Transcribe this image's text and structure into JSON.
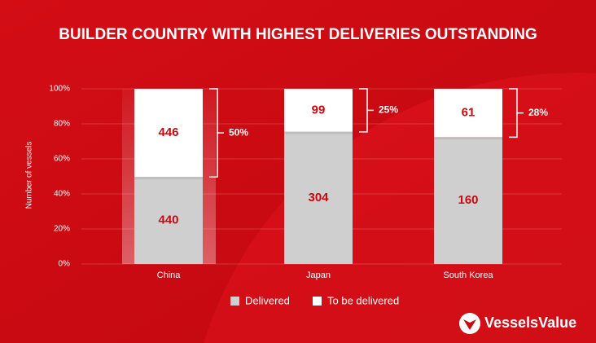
{
  "chart_data": {
    "type": "bar",
    "stacking": "percent",
    "title": "BUILDER COUNTRY WITH HIGHEST DELIVERIES  OUTSTANDING",
    "y_label": "Number of vessels",
    "categories": [
      "China",
      "Japan",
      "South Korea"
    ],
    "series": [
      {
        "name": "Delivered",
        "color": "#cfcfcf",
        "values": [
          440,
          304,
          160
        ]
      },
      {
        "name": "To be delivered",
        "color": "#ffffff",
        "values": [
          446,
          99,
          61
        ]
      }
    ],
    "annotations": [
      "50%",
      "25%",
      "28%"
    ],
    "ylim": [
      0,
      100
    ],
    "yticks": [
      {
        "value": 0,
        "label": "0%"
      },
      {
        "value": 20,
        "label": "20%"
      },
      {
        "value": 40,
        "label": "40%"
      },
      {
        "value": 60,
        "label": "60%"
      },
      {
        "value": 80,
        "label": "80%"
      },
      {
        "value": 100,
        "label": "100%"
      }
    ],
    "grid": true,
    "brand": "VesselsValue"
  }
}
